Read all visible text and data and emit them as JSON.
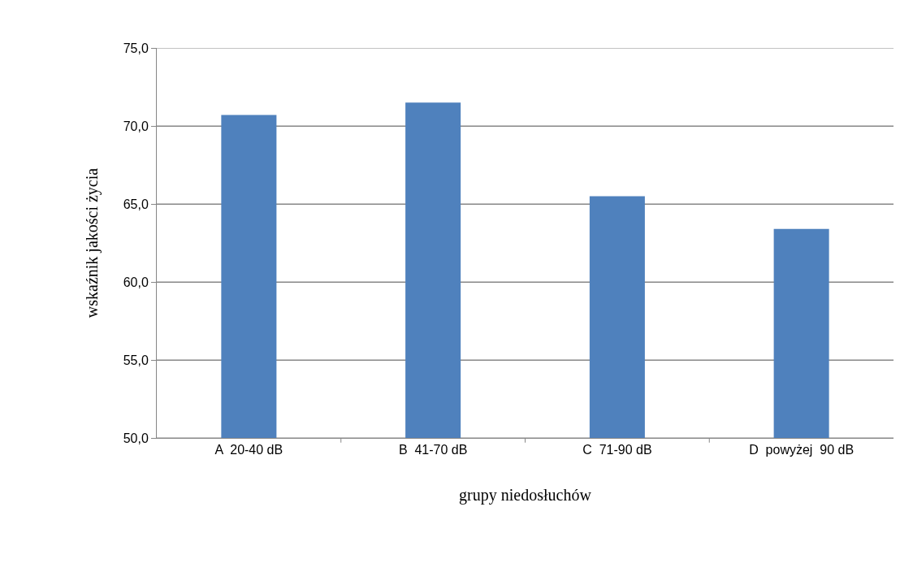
{
  "chart_data": {
    "type": "bar",
    "xlabel": "grupy niedosłuchów",
    "ylabel": "wskaźnik jakości życia",
    "categories": [
      "A  20-40 dB",
      "B  41-70 dB",
      "C  71-90 dB",
      "D  powyżej  90 dB"
    ],
    "values": [
      70.7,
      71.5,
      65.5,
      63.4
    ],
    "color": "#4f81bd",
    "ylim": [
      50,
      75
    ],
    "yticks": [
      {
        "value": 50,
        "label": "50,0"
      },
      {
        "value": 55,
        "label": "55,0"
      },
      {
        "value": 60,
        "label": "60,0"
      },
      {
        "value": 65,
        "label": "65,0"
      },
      {
        "value": 70,
        "label": "70,0"
      },
      {
        "value": 75,
        "label": "75,0"
      }
    ],
    "grid": "y"
  }
}
